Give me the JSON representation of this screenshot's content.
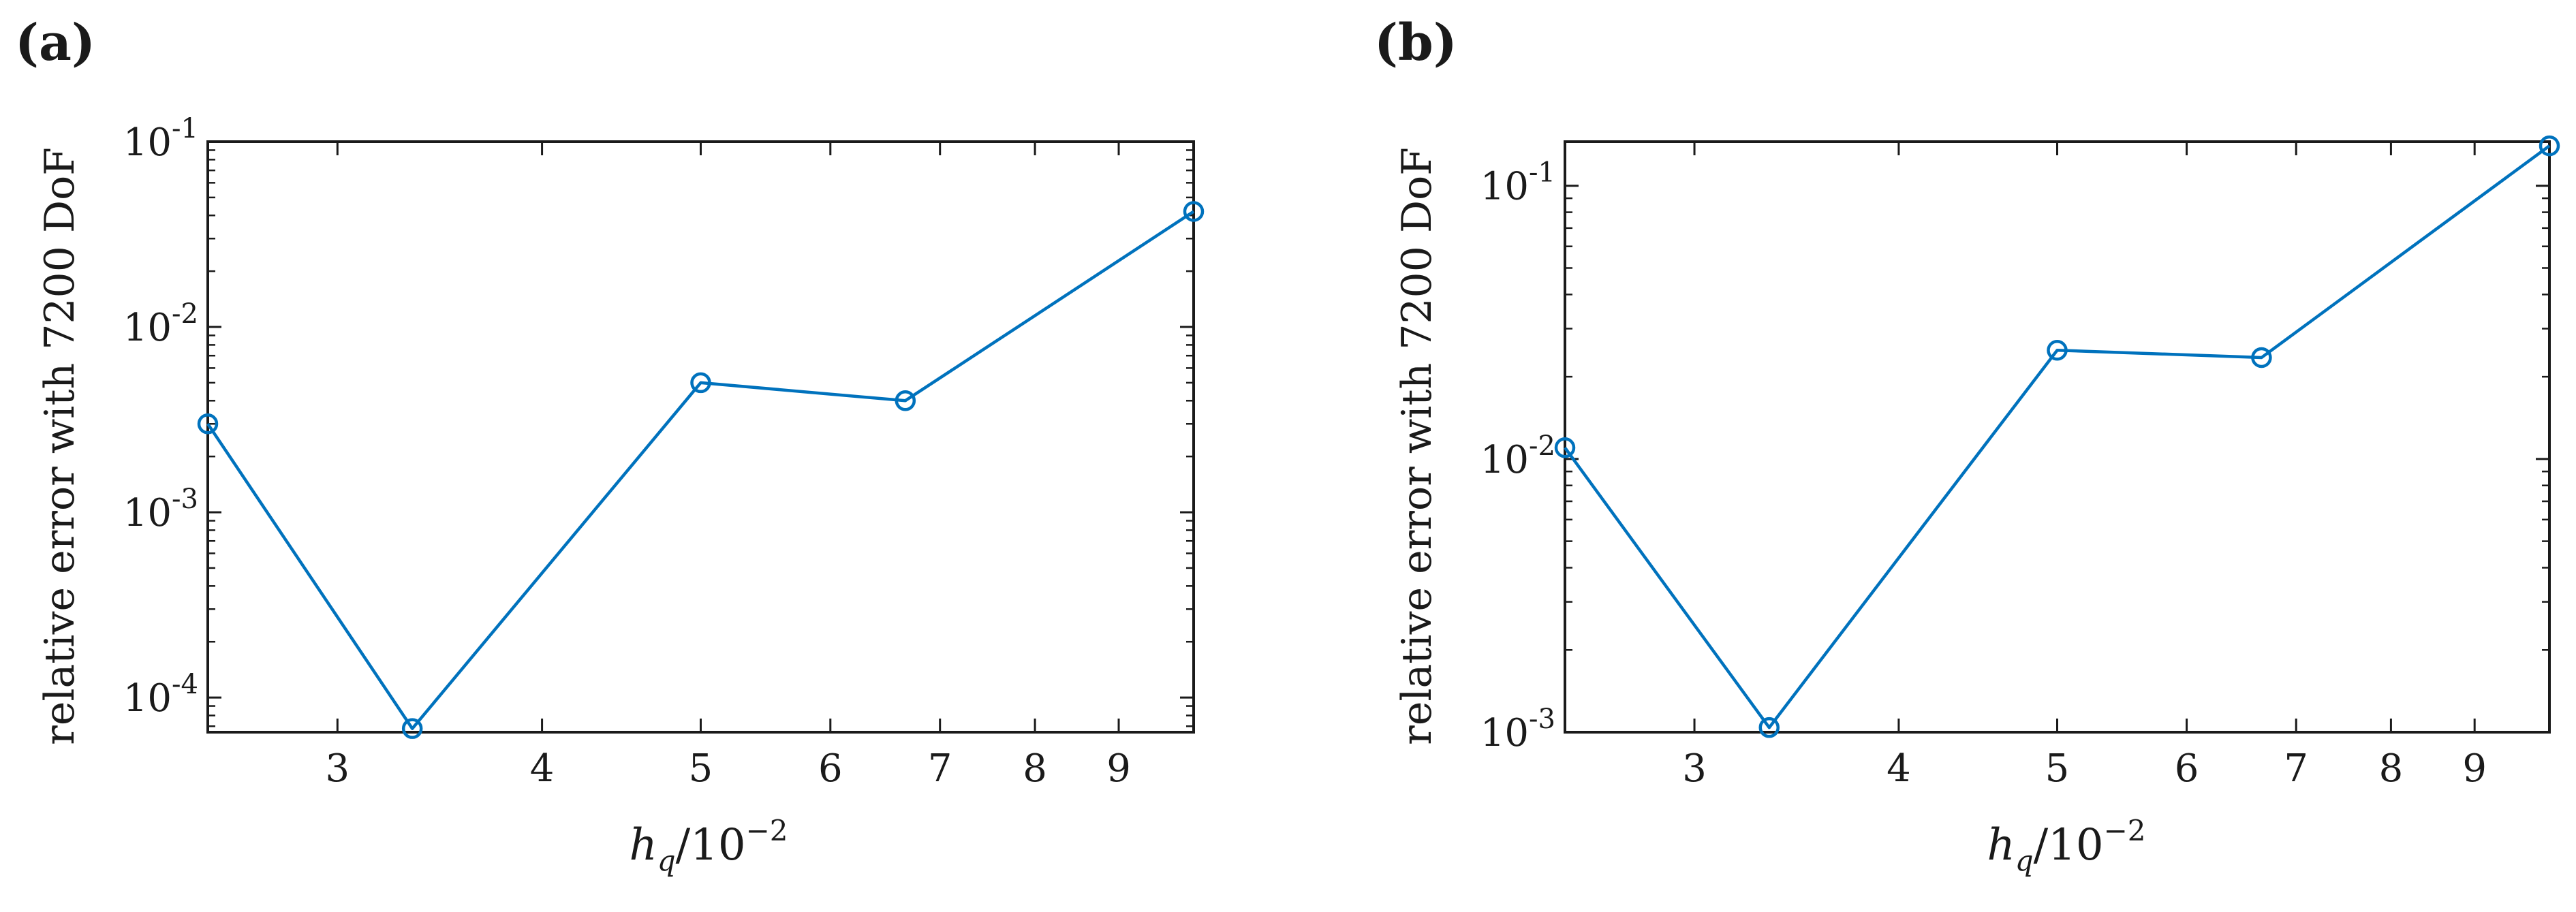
{
  "figure": {
    "line_color": "#0072bd",
    "axis_color": "#1a1a1a",
    "background": "#ffffff"
  },
  "chart_data": [
    {
      "panel_label": "(a)",
      "type": "line",
      "x_scale": "log",
      "y_scale": "log",
      "xlabel": "h_q/10^-2",
      "xlabel_parts": {
        "var": "h",
        "sub": "q",
        "mid": "/10",
        "exp": "−2"
      },
      "ylabel": "relative error with 7200 DoF",
      "xlim": [
        2.5,
        10.0
      ],
      "ylim": [
        6.5e-05,
        0.1
      ],
      "x_ticks": [
        3,
        4,
        5,
        6,
        7,
        8,
        9
      ],
      "x_tick_labels": [
        "3",
        "4",
        "5",
        "6",
        "7",
        "8",
        "9"
      ],
      "y_ticks": [
        0.0001,
        0.001,
        0.01,
        0.1
      ],
      "y_tick_labels": [
        {
          "base": "10",
          "exp": "-4"
        },
        {
          "base": "10",
          "exp": "-3"
        },
        {
          "base": "10",
          "exp": "-2"
        },
        {
          "base": "10",
          "exp": "-1"
        }
      ],
      "marker": "circle",
      "grid": false,
      "series": [
        {
          "name": "relative error",
          "x": [
            2.5,
            3.333,
            5.0,
            6.667,
            10.0
          ],
          "y": [
            0.003,
            6.8e-05,
            0.005,
            0.004,
            0.042
          ]
        }
      ]
    },
    {
      "panel_label": "(b)",
      "type": "line",
      "x_scale": "log",
      "y_scale": "log",
      "xlabel": "h_q/10^-2",
      "xlabel_parts": {
        "var": "h",
        "sub": "q",
        "mid": "/10",
        "exp": "−2"
      },
      "ylabel": "relative error with 7200 DoF",
      "xlim": [
        2.5,
        10.0
      ],
      "ylim": [
        0.001,
        0.145
      ],
      "x_ticks": [
        3,
        4,
        5,
        6,
        7,
        8,
        9
      ],
      "x_tick_labels": [
        "3",
        "4",
        "5",
        "6",
        "7",
        "8",
        "9"
      ],
      "y_ticks": [
        0.001,
        0.01,
        0.1
      ],
      "y_tick_labels": [
        {
          "base": "10",
          "exp": "-3"
        },
        {
          "base": "10",
          "exp": "-2"
        },
        {
          "base": "10",
          "exp": "-1"
        }
      ],
      "marker": "circle",
      "grid": false,
      "series": [
        {
          "name": "relative error",
          "x": [
            2.5,
            3.333,
            5.0,
            6.667,
            10.0
          ],
          "y": [
            0.011,
            0.00104,
            0.025,
            0.0235,
            0.14
          ]
        }
      ]
    }
  ]
}
